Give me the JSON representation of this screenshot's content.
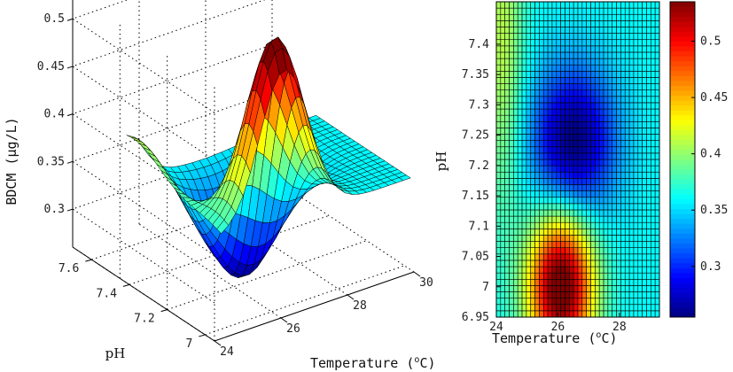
{
  "chart_data": [
    {
      "type": "surface3d",
      "title": "",
      "xlabel": "Temperature",
      "xunit_open": " (",
      "xunit_deg": "o",
      "xunit_close": "C)",
      "ylabel": "pH",
      "zlabel": "BDCM (μg/L)",
      "x_ticks": [
        "24",
        "26",
        "28",
        "30"
      ],
      "y_ticks": [
        "7",
        "7.2",
        "7.4",
        "7.6"
      ],
      "z_ticks": [
        "0.3",
        "0.35",
        "0.4",
        "0.45",
        "0.5"
      ],
      "xlim": [
        24,
        30
      ],
      "ylim": [
        6.95,
        7.7
      ],
      "zlim": [
        0.26,
        0.53
      ],
      "colormap": "jet"
    },
    {
      "type": "heatmap",
      "title": "",
      "xlabel": "Temperature",
      "xunit_open": " (",
      "xunit_deg": "o",
      "xunit_close": "C)",
      "ylabel": "pH",
      "x_ticks": [
        "24",
        "26",
        "28"
      ],
      "y_ticks": [
        "6.95",
        "7",
        "7.05",
        "7.1",
        "7.15",
        "7.2",
        "7.25",
        "7.3",
        "7.35",
        "7.4"
      ],
      "xlim": [
        24,
        29.3
      ],
      "ylim": [
        6.95,
        7.47
      ],
      "colorbar_ticks": [
        "0.3",
        "0.35",
        "0.4",
        "0.45",
        "0.5"
      ],
      "clim": [
        0.255,
        0.535
      ],
      "colormap": "jet"
    }
  ]
}
